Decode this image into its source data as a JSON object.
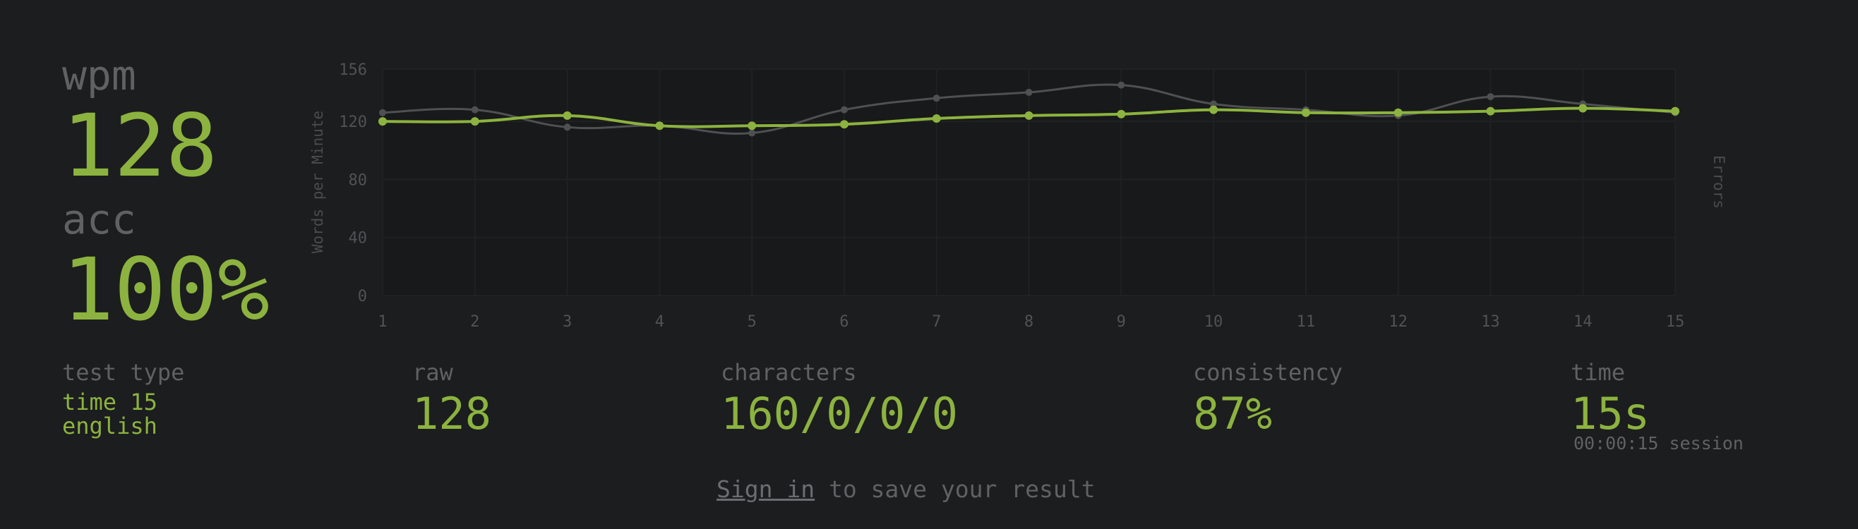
{
  "results": {
    "wpm_label": "wpm",
    "wpm_value": "128",
    "acc_label": "acc",
    "acc_value": "100%"
  },
  "stats": {
    "test_type_label": "test type",
    "test_type_mode": "time 15",
    "test_type_language": "english",
    "raw_label": "raw",
    "raw_value": "128",
    "characters_label": "characters",
    "characters_value": "160/0/0/0",
    "consistency_label": "consistency",
    "consistency_value": "87%",
    "time_label": "time",
    "time_value": "15s",
    "session_text": "00:00:15 session"
  },
  "signin": {
    "link_label": "Sign in",
    "suffix": " to save your result"
  },
  "colors": {
    "background": "#1c1d1f",
    "main": "#8cb33f",
    "sub": "#5f6163",
    "raw_line": "#4e5052"
  },
  "chart_data": {
    "type": "line",
    "x": [
      1,
      2,
      3,
      4,
      5,
      6,
      7,
      8,
      9,
      10,
      11,
      12,
      13,
      14,
      15
    ],
    "series": [
      {
        "name": "raw",
        "values": [
          126,
          128,
          116,
          117,
          112,
          128,
          136,
          140,
          145,
          132,
          128,
          124,
          137,
          132,
          126
        ]
      },
      {
        "name": "wpm",
        "values": [
          120,
          120,
          124,
          117,
          117,
          118,
          122,
          124,
          125,
          128,
          126,
          126,
          127,
          129,
          127
        ]
      }
    ],
    "ylabel": "Words per Minute",
    "y2label": "Errors",
    "yticks": [
      0,
      40,
      80,
      120,
      156
    ],
    "ylim": [
      0,
      156
    ],
    "xlim": [
      1,
      15
    ],
    "grid": true
  }
}
